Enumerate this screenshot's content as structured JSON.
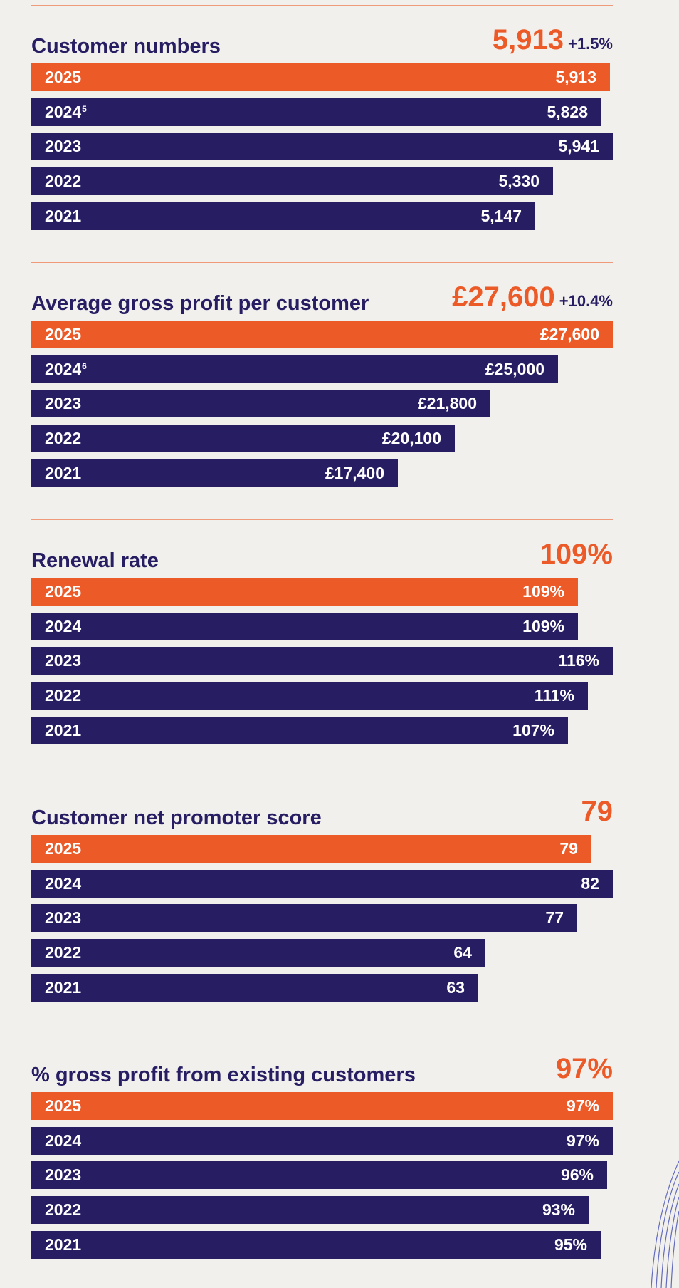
{
  "colors": {
    "current": "#ec5a28",
    "previous": "#271d63",
    "background": "#f1f0ec",
    "rule": "#ef9a7a"
  },
  "chart_data": [
    {
      "type": "bar",
      "orientation": "horizontal",
      "title": "Customer numbers",
      "headline_value": "5,913",
      "headline_change": "+1.5%",
      "xlim": [
        0,
        5941
      ],
      "categories": [
        {
          "label": "2025",
          "footnote": ""
        },
        {
          "label": "2024",
          "footnote": "5"
        },
        {
          "label": "2023",
          "footnote": ""
        },
        {
          "label": "2022",
          "footnote": ""
        },
        {
          "label": "2021",
          "footnote": ""
        }
      ],
      "values": [
        5913,
        5828,
        5941,
        5330,
        5147
      ],
      "value_labels": [
        "5,913",
        "5,828",
        "5,941",
        "5,330",
        "5,147"
      ]
    },
    {
      "type": "bar",
      "orientation": "horizontal",
      "title": "Average gross profit per customer",
      "headline_value": "£27,600",
      "headline_change": "+10.4%",
      "xlim": [
        0,
        27600
      ],
      "categories": [
        {
          "label": "2025",
          "footnote": ""
        },
        {
          "label": "2024",
          "footnote": "6"
        },
        {
          "label": "2023",
          "footnote": ""
        },
        {
          "label": "2022",
          "footnote": ""
        },
        {
          "label": "2021",
          "footnote": ""
        }
      ],
      "values": [
        27600,
        25000,
        21800,
        20100,
        17400
      ],
      "value_labels": [
        "£27,600",
        "£25,000",
        "£21,800",
        "£20,100",
        "£17,400"
      ]
    },
    {
      "type": "bar",
      "orientation": "horizontal",
      "title": "Renewal rate",
      "headline_value": "109%",
      "headline_change": "",
      "xlim": [
        0,
        116
      ],
      "categories": [
        {
          "label": "2025",
          "footnote": ""
        },
        {
          "label": "2024",
          "footnote": ""
        },
        {
          "label": "2023",
          "footnote": ""
        },
        {
          "label": "2022",
          "footnote": ""
        },
        {
          "label": "2021",
          "footnote": ""
        }
      ],
      "values": [
        109,
        109,
        116,
        111,
        107
      ],
      "value_labels": [
        "109%",
        "109%",
        "116%",
        "111%",
        "107%"
      ]
    },
    {
      "type": "bar",
      "orientation": "horizontal",
      "title": "Customer net promoter score",
      "headline_value": "79",
      "headline_change": "",
      "xlim": [
        0,
        82
      ],
      "categories": [
        {
          "label": "2025",
          "footnote": ""
        },
        {
          "label": "2024",
          "footnote": ""
        },
        {
          "label": "2023",
          "footnote": ""
        },
        {
          "label": "2022",
          "footnote": ""
        },
        {
          "label": "2021",
          "footnote": ""
        }
      ],
      "values": [
        79,
        82,
        77,
        64,
        63
      ],
      "value_labels": [
        "79",
        "82",
        "77",
        "64",
        "63"
      ]
    },
    {
      "type": "bar",
      "orientation": "horizontal",
      "title": "% gross profit from existing customers",
      "headline_value": "97%",
      "headline_change": "",
      "xlim": [
        0,
        97
      ],
      "categories": [
        {
          "label": "2025",
          "footnote": ""
        },
        {
          "label": "2024",
          "footnote": ""
        },
        {
          "label": "2023",
          "footnote": ""
        },
        {
          "label": "2022",
          "footnote": ""
        },
        {
          "label": "2021",
          "footnote": ""
        }
      ],
      "values": [
        97,
        97,
        96,
        93,
        95
      ],
      "value_labels": [
        "97%",
        "97%",
        "96%",
        "93%",
        "95%"
      ]
    }
  ]
}
